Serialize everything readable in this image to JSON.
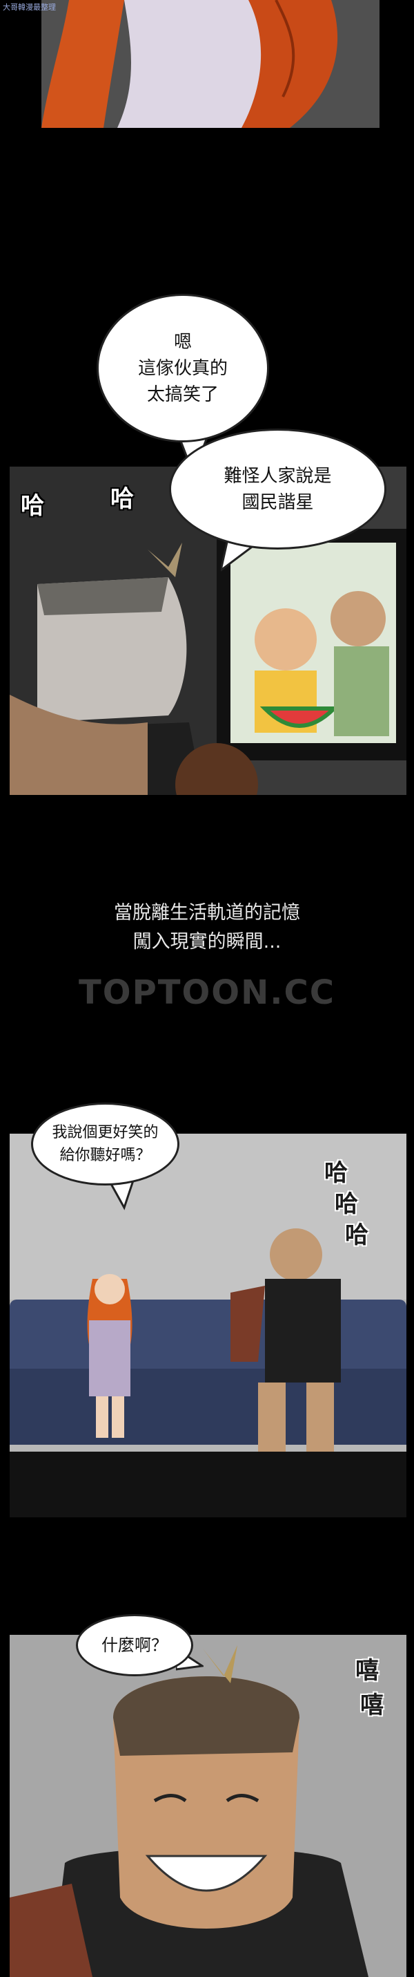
{
  "site_watermark_small": "大哥韓漫最整理",
  "panel3": {
    "bubble1": "嗯\n這傢伙真的\n太搞笑了",
    "bubble2": "難怪人家說是\n國民諧星",
    "sfx_left": "哈",
    "sfx_right": "哈"
  },
  "narration": "當脫離生活軌道的記憶\n闖入現實的瞬間...",
  "watermark": "TOPTOON.CC",
  "panel4": {
    "bubble": "我說個更好笑的\n給你聽好嗎？",
    "sfx": [
      "哈",
      "哈",
      "哈"
    ]
  },
  "panel5": {
    "bubble": "什麼啊？",
    "sfx": [
      "嘻",
      "嘻"
    ]
  },
  "colors": {
    "hair_orange": "#d9601e",
    "sofa_blue": "#3c4a70",
    "watermelon": "#e23b3b",
    "background": "#000000"
  }
}
